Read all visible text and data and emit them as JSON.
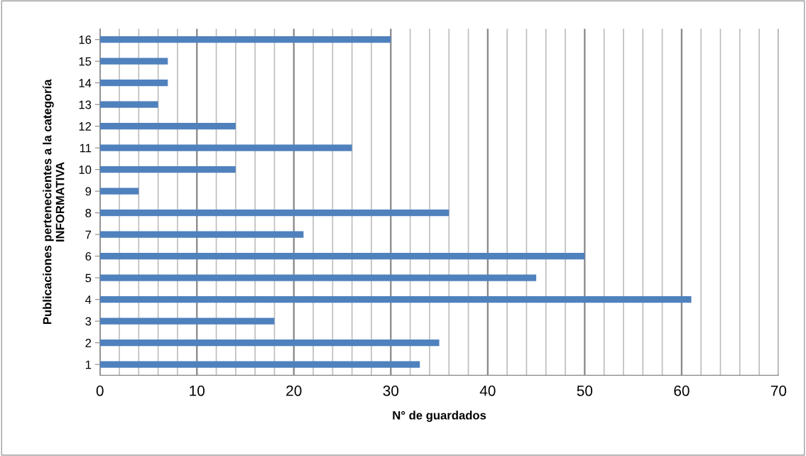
{
  "chart_data": {
    "type": "bar",
    "orientation": "horizontal",
    "xlabel": "N° de guardados",
    "ylabel": "Publicaciones pertenecientes a la categoría\nINFORMATIVA",
    "categories": [
      "16",
      "15",
      "14",
      "13",
      "12",
      "11",
      "10",
      "9",
      "8",
      "7",
      "6",
      "5",
      "4",
      "3",
      "2",
      "1"
    ],
    "values": [
      30,
      7,
      7,
      6,
      14,
      26,
      14,
      4,
      36,
      21,
      50,
      45,
      61,
      18,
      35,
      33
    ],
    "color": "#4f81bd",
    "xlim": [
      0,
      70
    ],
    "xticks": [
      0,
      {
        "value": 2,
        "label": null
      },
      {
        "value": 4,
        "label": null
      },
      {
        "value": 6,
        "label": null
      },
      {
        "value": 8,
        "label": null
      },
      10,
      {
        "value": 12,
        "label": null
      },
      {
        "value": 14,
        "label": null
      },
      {
        "value": 16,
        "label": null
      },
      {
        "value": 18,
        "label": null
      },
      20,
      {
        "value": 22,
        "label": null
      },
      {
        "value": 24,
        "label": null
      },
      {
        "value": 26,
        "label": null
      },
      {
        "value": 28,
        "label": null
      },
      30,
      {
        "value": 32,
        "label": null
      },
      {
        "value": 34,
        "label": null
      },
      {
        "value": 36,
        "label": null
      },
      {
        "value": 38,
        "label": null
      },
      40,
      {
        "value": 42,
        "label": null
      },
      {
        "value": 44,
        "label": null
      },
      {
        "value": 46,
        "label": null
      },
      {
        "value": 48,
        "label": null
      },
      50,
      {
        "value": 52,
        "label": null
      },
      {
        "value": 54,
        "label": null
      },
      {
        "value": 56,
        "label": null
      },
      {
        "value": 58,
        "label": null
      },
      60,
      {
        "value": 62,
        "label": null
      },
      {
        "value": 64,
        "label": null
      },
      {
        "value": 66,
        "label": null
      },
      {
        "value": 68,
        "label": null
      },
      70
    ],
    "grid": "x",
    "legend": false
  }
}
